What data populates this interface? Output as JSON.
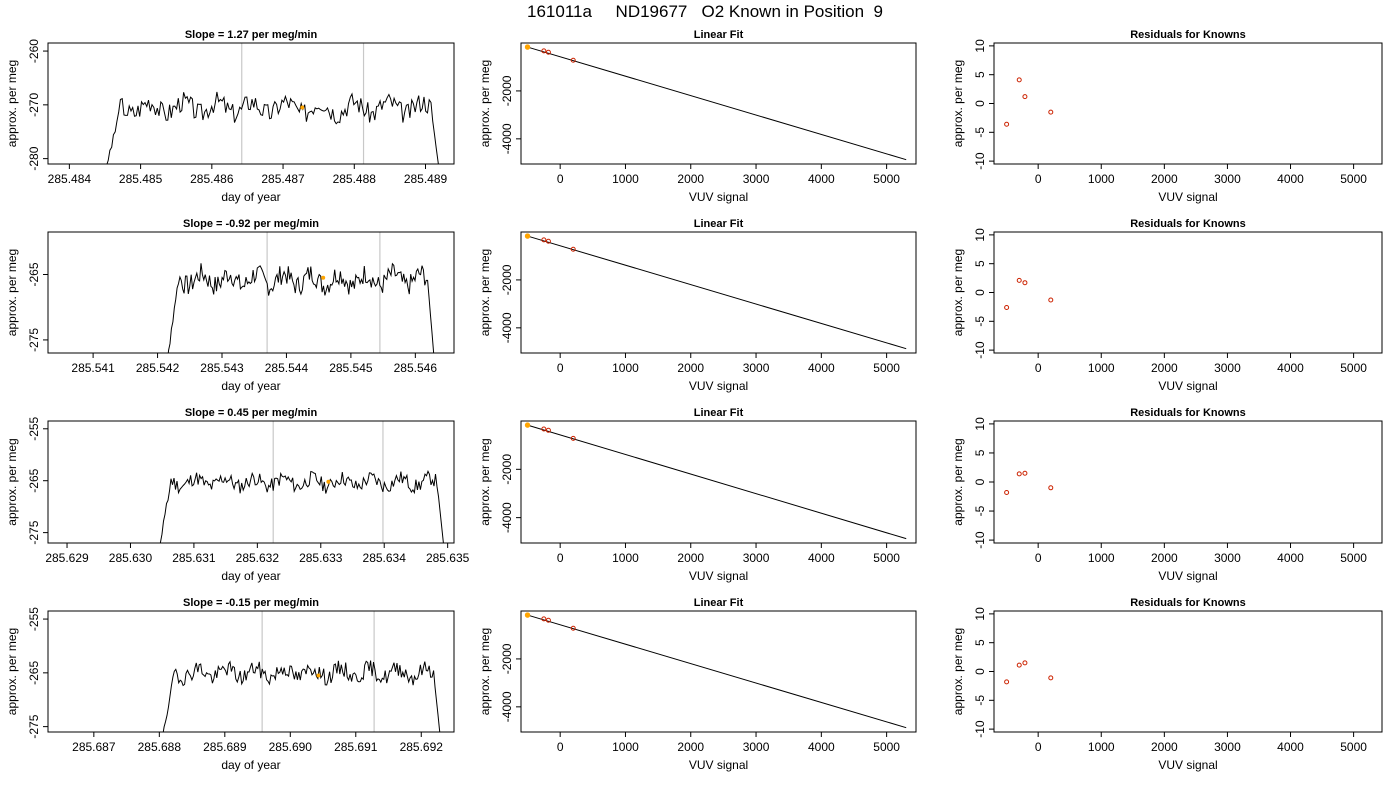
{
  "figure_title": "161011a     ND19677   O2 Known in Position  9",
  "colors": {
    "trace": "#000000",
    "vline": "#c8c8c8",
    "highlight": "#ffa500",
    "residual": "#cc2200",
    "axis": "#000000"
  },
  "chart_data": [
    {
      "panel": "timeseries-1",
      "type": "line",
      "title": "Slope =  1.27  per meg/min",
      "xlabel": "day of year",
      "ylabel": "approx. per meg",
      "xlim": [
        285.4837,
        285.4894
      ],
      "ylim": [
        -281,
        -258.5
      ],
      "xticks": [
        285.484,
        285.485,
        285.486,
        285.487,
        285.488,
        285.489
      ],
      "xtick_labels": [
        "285.484",
        "285.485",
        "285.486",
        "285.487",
        "285.488",
        "285.489"
      ],
      "yticks": [
        -280,
        -270,
        -260
      ],
      "ytick_labels": [
        "-280",
        "-270",
        "-260"
      ],
      "trace_start": 285.48452,
      "trace_end": 285.4892,
      "trace_level": -270.5,
      "trace_amp": 1.9,
      "seed": 3,
      "vlines": [
        285.48642,
        285.48813
      ],
      "highlight_point": [
        285.48727,
        -270.5
      ]
    },
    {
      "panel": "timeseries-2",
      "type": "line",
      "title": "Slope =  -0.92  per meg/min",
      "xlabel": "day of year",
      "ylabel": "approx. per meg",
      "xlim": [
        285.5403,
        285.5466
      ],
      "ylim": [
        -277,
        -258.5
      ],
      "xticks": [
        285.541,
        285.542,
        285.543,
        285.544,
        285.545,
        285.546
      ],
      "xtick_labels": [
        "285.541",
        "285.542",
        "285.543",
        "285.544",
        "285.545",
        "285.546"
      ],
      "yticks": [
        -275,
        -265
      ],
      "ytick_labels": [
        "-275",
        "-265"
      ],
      "trace_start": 285.54215,
      "trace_end": 285.5463,
      "trace_level": -265.8,
      "trace_amp": 1.6,
      "seed": 7,
      "vlines": [
        285.5437,
        285.54545
      ],
      "highlight_point": [
        285.54457,
        -265.5
      ]
    },
    {
      "panel": "timeseries-3",
      "type": "line",
      "title": "Slope =  0.45  per meg/min",
      "xlabel": "day of year",
      "ylabel": "approx. per meg",
      "xlim": [
        285.6287,
        285.6351
      ],
      "ylim": [
        -277,
        -253.5
      ],
      "xticks": [
        285.629,
        285.63,
        285.631,
        285.632,
        285.633,
        285.634,
        285.635
      ],
      "xtick_labels": [
        "285.629",
        "285.630",
        "285.631",
        "285.632",
        "285.633",
        "285.634",
        "285.635"
      ],
      "yticks": [
        -275,
        -265,
        -255
      ],
      "ytick_labels": [
        "-275",
        "-265",
        "-255"
      ],
      "trace_start": 285.63045,
      "trace_end": 285.63495,
      "trace_level": -265.3,
      "trace_amp": 1.4,
      "seed": 11,
      "vlines": [
        285.63225,
        285.63398
      ],
      "highlight_point": [
        285.63312,
        -265.2
      ]
    },
    {
      "panel": "timeseries-4",
      "type": "line",
      "title": "Slope =  -0.15  per meg/min",
      "xlabel": "day of year",
      "ylabel": "approx. per meg",
      "xlim": [
        285.6863,
        285.6925
      ],
      "ylim": [
        -276,
        -253.5
      ],
      "xticks": [
        285.687,
        285.688,
        285.689,
        285.69,
        285.691,
        285.692
      ],
      "xtick_labels": [
        "285.687",
        "285.688",
        "285.689",
        "285.690",
        "285.691",
        "285.692"
      ],
      "yticks": [
        -275,
        -265,
        -255
      ],
      "ytick_labels": [
        "-275",
        "-265",
        "-255"
      ],
      "trace_start": 285.68805,
      "trace_end": 285.6923,
      "trace_level": -265.0,
      "trace_amp": 1.5,
      "seed": 19,
      "vlines": [
        285.68957,
        285.69128
      ],
      "highlight_point": [
        285.69043,
        -265.5
      ]
    },
    {
      "panel": "fit-1",
      "type": "scatter",
      "title": "Linear Fit",
      "xlabel": "VUV signal",
      "ylabel": "approx. per meg",
      "xlim": [
        -600,
        5450
      ],
      "ylim": [
        -5050,
        0
      ],
      "xticks": [
        0,
        1000,
        2000,
        3000,
        4000,
        5000
      ],
      "xtick_labels": [
        "0",
        "1000",
        "2000",
        "3000",
        "4000",
        "5000"
      ],
      "yticks": [
        -2000,
        -4000
      ],
      "ytick_labels": [
        "-2000",
        "-4000"
      ],
      "fit_line": [
        [
          -500,
          -170
        ],
        [
          5300,
          -4870
        ]
      ],
      "points": [
        [
          -500,
          -170
        ],
        [
          -250,
          -330
        ],
        [
          -180,
          -385
        ],
        [
          200,
          -720
        ]
      ],
      "highlight_point": [
        -500,
        -170
      ]
    },
    {
      "panel": "fit-2",
      "type": "scatter",
      "title": "Linear Fit",
      "xlabel": "VUV signal",
      "ylabel": "approx. per meg",
      "xlim": [
        -600,
        5450
      ],
      "ylim": [
        -5050,
        0
      ],
      "xticks": [
        0,
        1000,
        2000,
        3000,
        4000,
        5000
      ],
      "xtick_labels": [
        "0",
        "1000",
        "2000",
        "3000",
        "4000",
        "5000"
      ],
      "yticks": [
        -2000,
        -4000
      ],
      "ytick_labels": [
        "-2000",
        "-4000"
      ],
      "fit_line": [
        [
          -500,
          -170
        ],
        [
          5300,
          -4870
        ]
      ],
      "points": [
        [
          -500,
          -170
        ],
        [
          -250,
          -330
        ],
        [
          -180,
          -385
        ],
        [
          200,
          -720
        ]
      ],
      "highlight_point": [
        -500,
        -170
      ]
    },
    {
      "panel": "fit-3",
      "type": "scatter",
      "title": "Linear Fit",
      "xlabel": "VUV signal",
      "ylabel": "approx. per meg",
      "xlim": [
        -600,
        5450
      ],
      "ylim": [
        -5050,
        0
      ],
      "xticks": [
        0,
        1000,
        2000,
        3000,
        4000,
        5000
      ],
      "xtick_labels": [
        "0",
        "1000",
        "2000",
        "3000",
        "4000",
        "5000"
      ],
      "yticks": [
        -2000,
        -4000
      ],
      "ytick_labels": [
        "-2000",
        "-4000"
      ],
      "fit_line": [
        [
          -500,
          -170
        ],
        [
          5300,
          -4870
        ]
      ],
      "points": [
        [
          -500,
          -170
        ],
        [
          -250,
          -330
        ],
        [
          -180,
          -385
        ],
        [
          200,
          -720
        ]
      ],
      "highlight_point": [
        -500,
        -170
      ]
    },
    {
      "panel": "fit-4",
      "type": "scatter",
      "title": "Linear Fit",
      "xlabel": "VUV signal",
      "ylabel": "approx. per meg",
      "xlim": [
        -600,
        5450
      ],
      "ylim": [
        -5050,
        0
      ],
      "xticks": [
        0,
        1000,
        2000,
        3000,
        4000,
        5000
      ],
      "xtick_labels": [
        "0",
        "1000",
        "2000",
        "3000",
        "4000",
        "5000"
      ],
      "yticks": [
        -2000,
        -4000
      ],
      "ytick_labels": [
        "-2000",
        "-4000"
      ],
      "fit_line": [
        [
          -500,
          -170
        ],
        [
          5300,
          -4870
        ]
      ],
      "points": [
        [
          -500,
          -170
        ],
        [
          -250,
          -330
        ],
        [
          -180,
          -385
        ],
        [
          200,
          -720
        ]
      ],
      "highlight_point": [
        -500,
        -170
      ]
    },
    {
      "panel": "residuals-1",
      "type": "scatter",
      "title": "Residuals for Knowns",
      "xlabel": "VUV signal",
      "ylabel": "approx. per meg",
      "xlim": [
        -700,
        5450
      ],
      "ylim": [
        -10.5,
        10.5
      ],
      "xticks": [
        0,
        1000,
        2000,
        3000,
        4000,
        5000
      ],
      "xtick_labels": [
        "0",
        "1000",
        "2000",
        "3000",
        "4000",
        "5000"
      ],
      "yticks": [
        -10,
        -5,
        0,
        5,
        10
      ],
      "ytick_labels": [
        "-10",
        "-5",
        "0",
        "5",
        "10"
      ],
      "points": [
        [
          -500,
          -3.6
        ],
        [
          -300,
          4.1
        ],
        [
          -210,
          1.2
        ],
        [
          200,
          -1.5
        ]
      ]
    },
    {
      "panel": "residuals-2",
      "type": "scatter",
      "title": "Residuals for Knowns",
      "xlabel": "VUV signal",
      "ylabel": "approx. per meg",
      "xlim": [
        -700,
        5450
      ],
      "ylim": [
        -10.5,
        10.5
      ],
      "xticks": [
        0,
        1000,
        2000,
        3000,
        4000,
        5000
      ],
      "xtick_labels": [
        "0",
        "1000",
        "2000",
        "3000",
        "4000",
        "5000"
      ],
      "yticks": [
        -10,
        -5,
        0,
        5,
        10
      ],
      "ytick_labels": [
        "-10",
        "-5",
        "0",
        "5",
        "10"
      ],
      "points": [
        [
          -500,
          -2.6
        ],
        [
          -300,
          2.1
        ],
        [
          -210,
          1.7
        ],
        [
          200,
          -1.3
        ]
      ]
    },
    {
      "panel": "residuals-3",
      "type": "scatter",
      "title": "Residuals for Knowns",
      "xlabel": "VUV signal",
      "ylabel": "approx. per meg",
      "xlim": [
        -700,
        5450
      ],
      "ylim": [
        -10.5,
        10.5
      ],
      "xticks": [
        0,
        1000,
        2000,
        3000,
        4000,
        5000
      ],
      "xtick_labels": [
        "0",
        "1000",
        "2000",
        "3000",
        "4000",
        "5000"
      ],
      "yticks": [
        -10,
        -5,
        0,
        5,
        10
      ],
      "ytick_labels": [
        "-10",
        "-5",
        "0",
        "5",
        "10"
      ],
      "points": [
        [
          -500,
          -1.8
        ],
        [
          -300,
          1.4
        ],
        [
          -210,
          1.5
        ],
        [
          200,
          -1.0
        ]
      ]
    },
    {
      "panel": "residuals-4",
      "type": "scatter",
      "title": "Residuals for Knowns",
      "xlabel": "VUV signal",
      "ylabel": "approx. per meg",
      "xlim": [
        -700,
        5450
      ],
      "ylim": [
        -10.5,
        10.5
      ],
      "xticks": [
        0,
        1000,
        2000,
        3000,
        4000,
        5000
      ],
      "xtick_labels": [
        "0",
        "1000",
        "2000",
        "3000",
        "4000",
        "5000"
      ],
      "yticks": [
        -10,
        -5,
        0,
        5,
        10
      ],
      "ytick_labels": [
        "-10",
        "-5",
        "0",
        "5",
        "10"
      ],
      "points": [
        [
          -500,
          -1.8
        ],
        [
          -300,
          1.1
        ],
        [
          -210,
          1.5
        ],
        [
          200,
          -1.1
        ]
      ]
    }
  ]
}
